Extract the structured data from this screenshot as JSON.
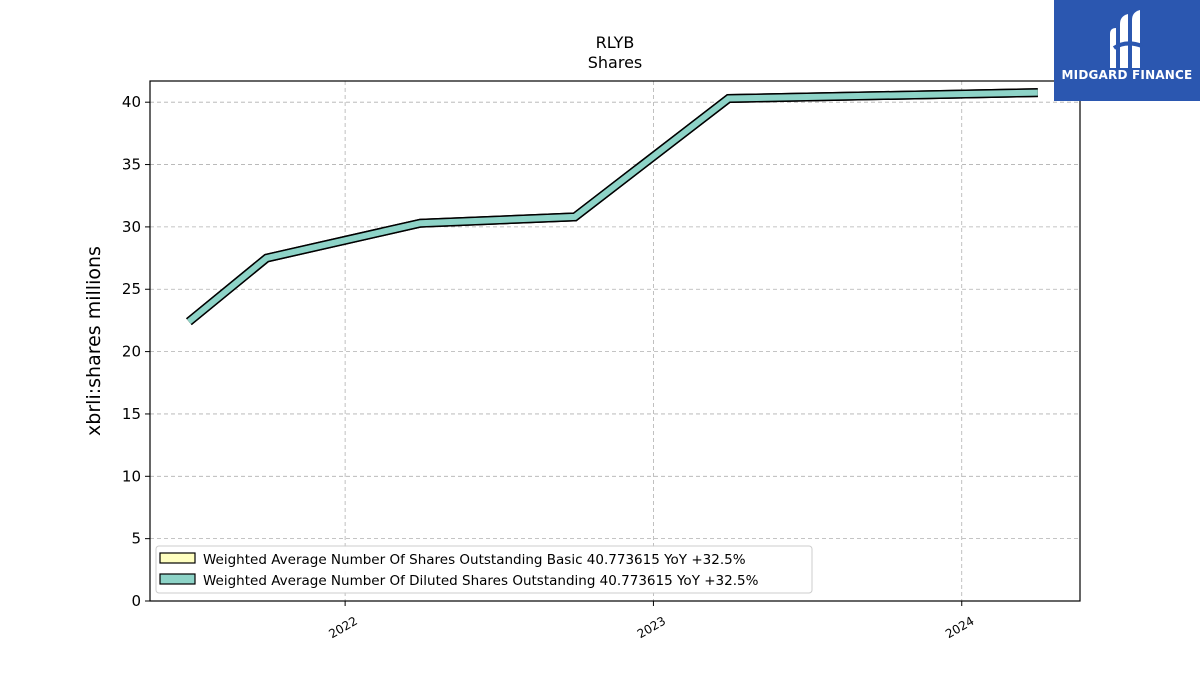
{
  "chart_data": {
    "type": "area",
    "title": "RLYB",
    "subtitle": "Shares",
    "ylabel": "xbrli:shares millions",
    "xlabel": "",
    "ylim": [
      0,
      41.7
    ],
    "xlim": [
      "2021-05-15",
      "2024-05-20"
    ],
    "yticks": [
      0,
      5,
      10,
      15,
      20,
      25,
      30,
      35,
      40
    ],
    "xticks": [
      "2022",
      "2023",
      "2024"
    ],
    "xtick_dates": [
      "2022-01-01",
      "2023-01-01",
      "2024-01-01"
    ],
    "grid": true,
    "legend_position": "lower-left",
    "x": [
      "2021-06-30",
      "2021-09-30",
      "2022-03-31",
      "2022-09-30",
      "2023-03-31",
      "2024-03-31"
    ],
    "series": [
      {
        "name": "Weighted Average Number Of Shares Outstanding Basic",
        "legend_label": "Weighted Average Number Of Shares Outstanding Basic  40.773615 YoY +32.5%",
        "color": "#ffffc0",
        "values": [
          22.4,
          27.5,
          30.3,
          30.8,
          40.3,
          40.773615
        ]
      },
      {
        "name": "Weighted Average Number Of Diluted Shares Outstanding",
        "legend_label": "Weighted Average Number Of Diluted Shares Outstanding  40.773615 YoY +32.5%",
        "color": "#8dd3c7",
        "values": [
          22.4,
          27.5,
          30.3,
          30.8,
          40.3,
          40.773615
        ]
      }
    ]
  },
  "logo": {
    "text": "MIDGARD FINANCE"
  }
}
